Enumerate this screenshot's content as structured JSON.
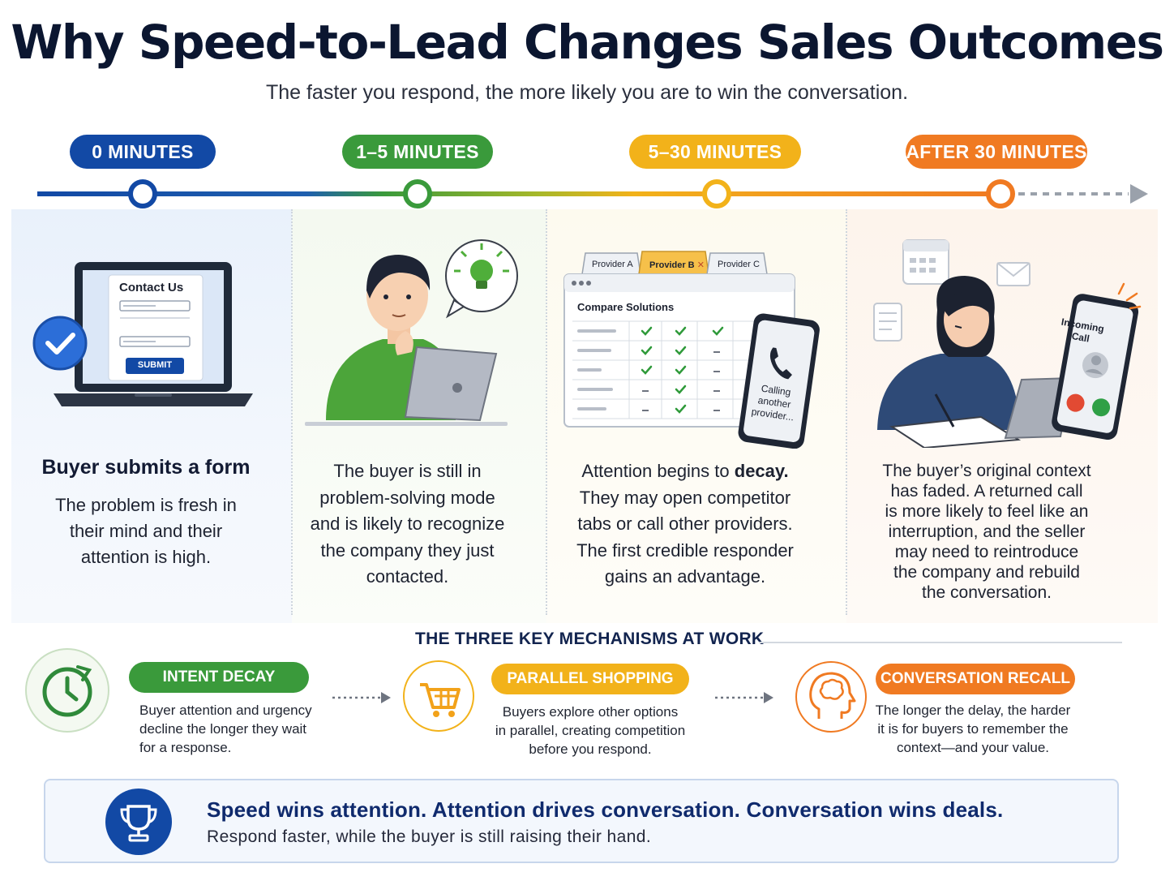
{
  "title": "Why Speed-to-Lead Changes Sales Outcomes",
  "subtitle": "The faster you respond, the more likely you are to win the conversation.",
  "colors": {
    "blue": "#1249a5",
    "green": "#3a9a3b",
    "yellow": "#f2b21a",
    "orange": "#f07a22"
  },
  "stages": [
    {
      "label": "0 MINUTES",
      "heading": "Buyer submits a form",
      "lines": [
        "The problem is fresh in",
        "their mind and their",
        "attention is high."
      ],
      "form": {
        "title": "Contact Us",
        "button": "SUBMIT"
      }
    },
    {
      "label": "1–5 MINUTES",
      "lines": [
        "The buyer is still in",
        "problem-solving mode",
        "and is likely to recognize",
        "the company they just",
        "contacted."
      ]
    },
    {
      "label": "5–30 MINUTES",
      "line1_pre": "Attention begins to ",
      "line1_bold": "decay.",
      "lines": [
        "They may open competitor",
        "tabs or call other providers.",
        "The first credible responder",
        "gains an advantage."
      ],
      "browser": {
        "tabs": [
          "Provider A",
          "Provider B",
          "Provider C"
        ],
        "title": "Compare Solutions"
      },
      "phone_lines": [
        "Calling",
        "another",
        "provider..."
      ]
    },
    {
      "label": "AFTER 30 MINUTES",
      "lines": [
        "The buyer’s original context",
        "has faded. A returned call",
        "is more likely to feel like an",
        "interruption, and the seller",
        "may need to reintroduce",
        "the company and rebuild",
        "the conversation."
      ],
      "phone_lines": [
        "Incoming",
        "Call"
      ]
    }
  ],
  "mechanisms": {
    "heading": "THE THREE KEY MECHANISMS AT WORK",
    "items": [
      {
        "label": "INTENT DECAY",
        "lines": [
          "Buyer attention and urgency",
          "decline the longer they wait",
          "for a response."
        ],
        "icon": "clock-icon"
      },
      {
        "label": "PARALLEL SHOPPING",
        "lines": [
          "Buyers explore other options",
          "in parallel, creating competition",
          "before you respond."
        ],
        "icon": "cart-icon"
      },
      {
        "label": "CONVERSATION RECALL",
        "lines": [
          "The longer the delay, the harder",
          "it is for buyers to remember the",
          "context—and your value."
        ],
        "icon": "brain-icon"
      }
    ]
  },
  "footer": {
    "main": "Speed wins attention. Attention drives conversation. Conversation wins deals.",
    "sub": "Respond faster, while the buyer is still raising their hand.",
    "icon": "trophy-icon"
  }
}
